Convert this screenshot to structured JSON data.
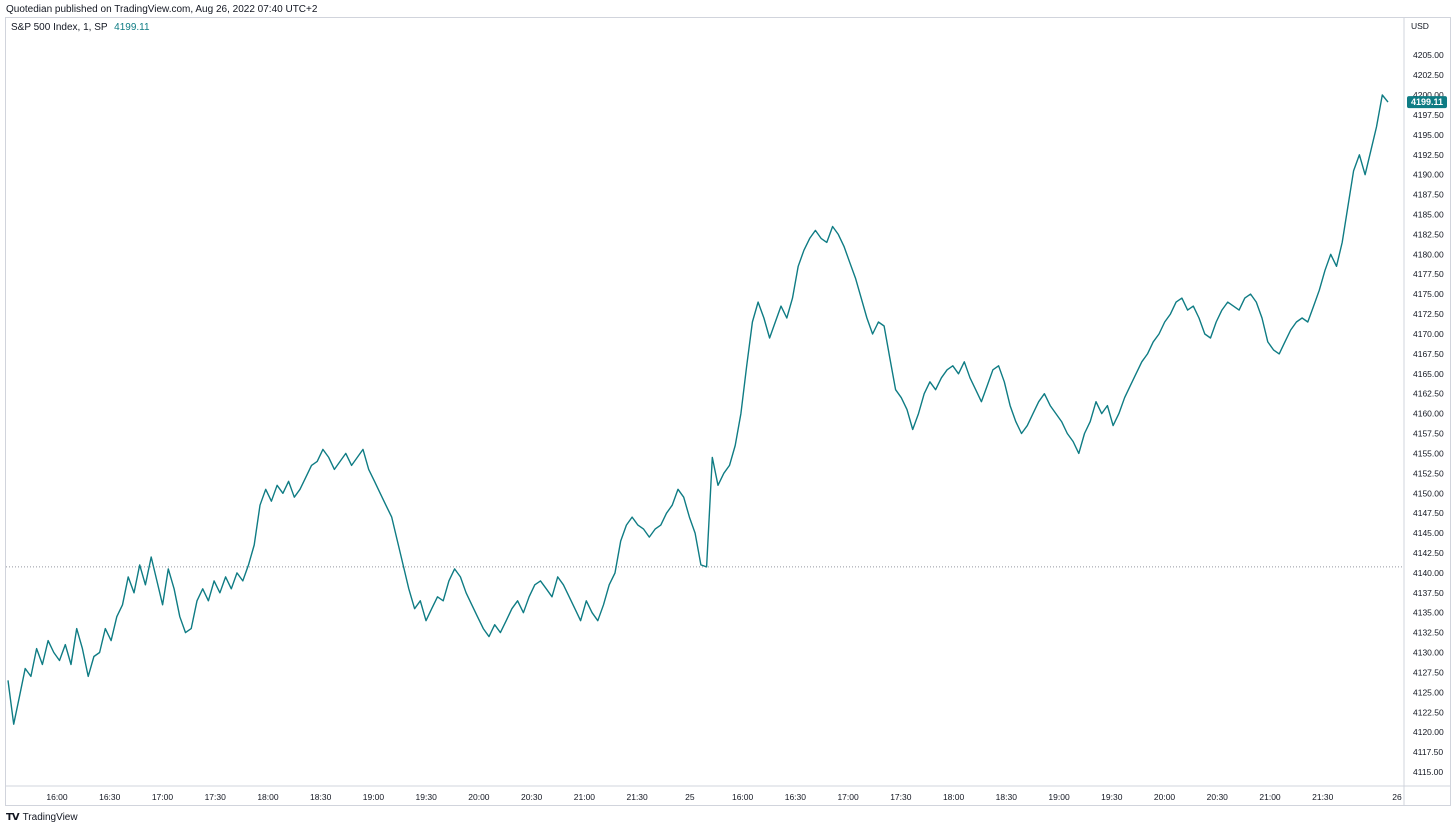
{
  "header": {
    "text": "Quotedian published on TradingView.com, Aug 26, 2022 07:40 UTC+2"
  },
  "legend": {
    "symbol": "S&P 500 Index, 1, SP",
    "last_price": "4199.11"
  },
  "footer": {
    "brand": "TradingView",
    "logo": "TV"
  },
  "colors": {
    "line": "#0f7c84",
    "price_tag_bg": "#0f7c84",
    "grid": "#d1d4dc",
    "baseline": "#9598a1"
  },
  "chart_data": {
    "type": "line",
    "title": "S&P 500 Index, 1, SP",
    "currency_label": "USD",
    "last_price": 4199.11,
    "baseline": 4140.75,
    "ylim": [
      4113.5,
      4208.5
    ],
    "y_ticks": [
      4115.0,
      4117.5,
      4120.0,
      4122.5,
      4125.0,
      4127.5,
      4130.0,
      4132.5,
      4135.0,
      4137.5,
      4140.0,
      4142.5,
      4145.0,
      4147.5,
      4150.0,
      4152.5,
      4155.0,
      4157.5,
      4160.0,
      4162.5,
      4165.0,
      4167.5,
      4170.0,
      4172.5,
      4175.0,
      4177.5,
      4180.0,
      4182.5,
      4185.0,
      4187.5,
      4190.0,
      4192.5,
      4195.0,
      4197.5,
      4200.0,
      4202.5,
      4205.0
    ],
    "y_tick_labels": [
      "4115.00",
      "4117.50",
      "4120.00",
      "4122.50",
      "4125.00",
      "4127.50",
      "4130.00",
      "4132.50",
      "4135.00",
      "4137.50",
      "4140.00",
      "4142.50",
      "4145.00",
      "4147.50",
      "4150.00",
      "4152.50",
      "4155.00",
      "4157.50",
      "4160.00",
      "4162.50",
      "4165.00",
      "4167.50",
      "4170.00",
      "4172.50",
      "4175.00",
      "4177.50",
      "4180.00",
      "4182.50",
      "4185.00",
      "4187.50",
      "4190.00",
      "4192.50",
      "4195.00",
      "4197.50",
      "4200.00",
      "4202.50",
      "4205.00"
    ],
    "x_ticks": [
      "16:00",
      "16:30",
      "17:00",
      "17:30",
      "18:00",
      "18:30",
      "19:00",
      "19:30",
      "20:00",
      "20:30",
      "21:00",
      "21:30",
      "25",
      "16:00",
      "16:30",
      "17:00",
      "17:30",
      "18:00",
      "18:30",
      "19:00",
      "19:30",
      "20:00",
      "20:30",
      "21:00",
      "21:30",
      "26"
    ],
    "series": [
      {
        "values": [
          4126.5,
          4121.0,
          4124.5,
          4128.0,
          4127.0,
          4130.5,
          4128.5,
          4131.5,
          4130.0,
          4129.0,
          4131.0,
          4128.5,
          4133.0,
          4130.5,
          4127.0,
          4129.5,
          4130.0,
          4133.0,
          4131.5,
          4134.5,
          4136.0,
          4139.5,
          4137.5,
          4141.0,
          4138.5,
          4142.0,
          4139.0,
          4136.0,
          4140.5,
          4138.0,
          4134.5,
          4132.5,
          4133.0,
          4136.5,
          4138.0,
          4136.5,
          4139.0,
          4137.5,
          4139.5,
          4138.0,
          4140.0,
          4139.0,
          4141.0,
          4143.5,
          4148.5,
          4150.5,
          4149.0,
          4151.0,
          4150.0,
          4151.5,
          4149.5,
          4150.5,
          4152.0,
          4153.5,
          4154.0,
          4155.5,
          4154.5,
          4153.0,
          4154.0,
          4155.0,
          4153.5,
          4154.5,
          4155.5,
          4153.0,
          4151.5,
          4150.0,
          4148.5,
          4147.0,
          4144.0,
          4141.0,
          4138.0,
          4135.5,
          4136.5,
          4134.0,
          4135.5,
          4137.0,
          4136.5,
          4139.0,
          4140.5,
          4139.5,
          4137.5,
          4136.0,
          4134.5,
          4133.0,
          4132.0,
          4133.5,
          4132.5,
          4134.0,
          4135.5,
          4136.5,
          4135.0,
          4137.0,
          4138.5,
          4139.0,
          4138.0,
          4137.0,
          4139.5,
          4138.5,
          4137.0,
          4135.5,
          4134.0,
          4136.5,
          4135.0,
          4134.0,
          4136.0,
          4138.5,
          4140.0,
          4144.0,
          4146.0,
          4147.0,
          4146.0,
          4145.5,
          4144.5,
          4145.5,
          4146.0,
          4147.5,
          4148.5,
          4150.5,
          4149.5,
          4147.0,
          4145.0,
          4141.0,
          4140.75,
          4154.5,
          4151.0,
          4152.5,
          4153.5,
          4156.0,
          4160.0,
          4166.0,
          4171.5,
          4174.0,
          4172.0,
          4169.5,
          4171.5,
          4173.5,
          4172.0,
          4174.5,
          4178.5,
          4180.5,
          4182.0,
          4183.0,
          4182.0,
          4181.5,
          4183.5,
          4182.5,
          4181.0,
          4179.0,
          4177.0,
          4174.5,
          4172.0,
          4170.0,
          4171.5,
          4171.0,
          4167.0,
          4163.0,
          4162.0,
          4160.5,
          4158.0,
          4160.0,
          4162.5,
          4164.0,
          4163.0,
          4164.5,
          4165.5,
          4166.0,
          4165.0,
          4166.5,
          4164.5,
          4163.0,
          4161.5,
          4163.5,
          4165.5,
          4166.0,
          4164.0,
          4161.0,
          4159.0,
          4157.5,
          4158.5,
          4160.0,
          4161.5,
          4162.5,
          4161.0,
          4160.0,
          4159.0,
          4157.5,
          4156.5,
          4155.0,
          4157.5,
          4159.0,
          4161.5,
          4160.0,
          4161.0,
          4158.5,
          4160.0,
          4162.0,
          4163.5,
          4165.0,
          4166.5,
          4167.5,
          4169.0,
          4170.0,
          4171.5,
          4172.5,
          4174.0,
          4174.5,
          4173.0,
          4173.5,
          4172.0,
          4170.0,
          4169.5,
          4171.5,
          4173.0,
          4174.0,
          4173.5,
          4173.0,
          4174.5,
          4175.0,
          4174.0,
          4172.0,
          4169.0,
          4168.0,
          4167.5,
          4169.0,
          4170.5,
          4171.5,
          4172.0,
          4171.5,
          4173.5,
          4175.5,
          4178.0,
          4180.0,
          4178.5,
          4181.5,
          4186.0,
          4190.5,
          4192.5,
          4190.0,
          4193.0,
          4196.0,
          4200.0,
          4199.11
        ]
      }
    ]
  }
}
